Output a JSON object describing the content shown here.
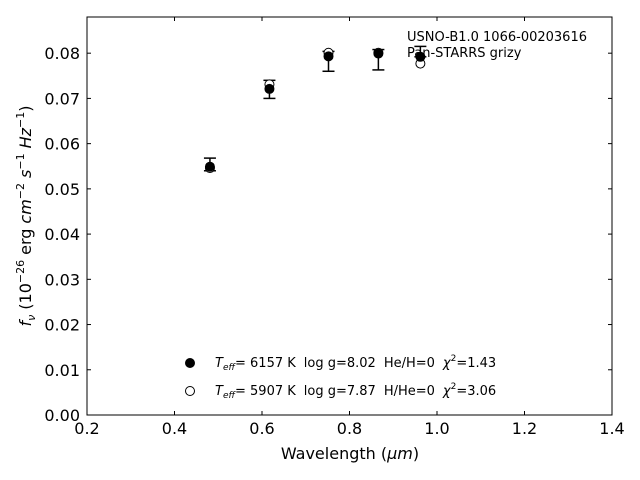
{
  "chart_data": {
    "type": "scatter",
    "title": "",
    "xlabel": "Wavelength (",
    "xlabel_unit": "μm",
    "xlabel_close": ")",
    "ylabel_prefix": "f",
    "ylabel_sub": "ν",
    "ylabel_scale_base": "(10",
    "ylabel_scale_exp": "−26",
    "ylabel_units_1": "erg",
    "ylabel_cm": "cm",
    "ylabel_cm_exp": "−2",
    "ylabel_s": "s",
    "ylabel_s_exp": "−1",
    "ylabel_hz": "Hz",
    "ylabel_hz_exp": "−1",
    "ylabel_close": ")",
    "xlim": [
      0.2,
      1.4
    ],
    "ylim": [
      0.0,
      0.088
    ],
    "x_ticks": [
      0.2,
      0.4,
      0.6,
      0.8,
      1.0,
      1.2,
      1.4
    ],
    "x_tick_labels": [
      "0.2",
      "0.4",
      "0.6",
      "0.8",
      "1.0",
      "1.2",
      "1.4"
    ],
    "y_ticks": [
      0.0,
      0.01,
      0.02,
      0.03,
      0.04,
      0.05,
      0.06,
      0.07,
      0.08
    ],
    "y_tick_labels": [
      "0.00",
      "0.01",
      "0.02",
      "0.03",
      "0.04",
      "0.05",
      "0.06",
      "0.07",
      "0.08"
    ],
    "grid": false,
    "annotation": [
      "USNO-B1.0 1066-00203616",
      "Pan-STARRS grizy"
    ],
    "observed": {
      "x": [
        0.481,
        0.617,
        0.752,
        0.866,
        0.962
      ],
      "y": [
        0.0553,
        0.072,
        0.0784,
        0.0788,
        0.08
      ],
      "yerr_low": [
        0.0013,
        0.002,
        0.0024,
        0.0025,
        0.0008
      ],
      "yerr_high": [
        0.0015,
        0.002,
        0.002,
        0.002,
        0.0015
      ]
    },
    "series": [
      {
        "marker": "filled",
        "x": [
          0.481,
          0.617,
          0.752,
          0.866,
          0.962
        ],
        "y": [
          0.0549,
          0.0721,
          0.0793,
          0.0799,
          0.0792
        ],
        "legend": {
          "teff_label": "T",
          "teff_sub": "eff",
          "teff_value": "=  6157 K",
          "logg": "log g=8.02",
          "comp": "He/H=0",
          "chi_label": "χ",
          "chi_exp": "2",
          "chi_value": "=1.43"
        }
      },
      {
        "marker": "open",
        "x": [
          0.481,
          0.617,
          0.752,
          0.866,
          0.962
        ],
        "y": [
          0.0546,
          0.0731,
          0.0801,
          0.0801,
          0.0777
        ],
        "legend": {
          "teff_label": "T",
          "teff_sub": "eff",
          "teff_value": "=  5907 K",
          "logg": "log g=7.87",
          "comp": "H/He=0",
          "chi_label": "χ",
          "chi_exp": "2",
          "chi_value": "=3.06"
        }
      }
    ],
    "legend_position": "bottom-center"
  }
}
